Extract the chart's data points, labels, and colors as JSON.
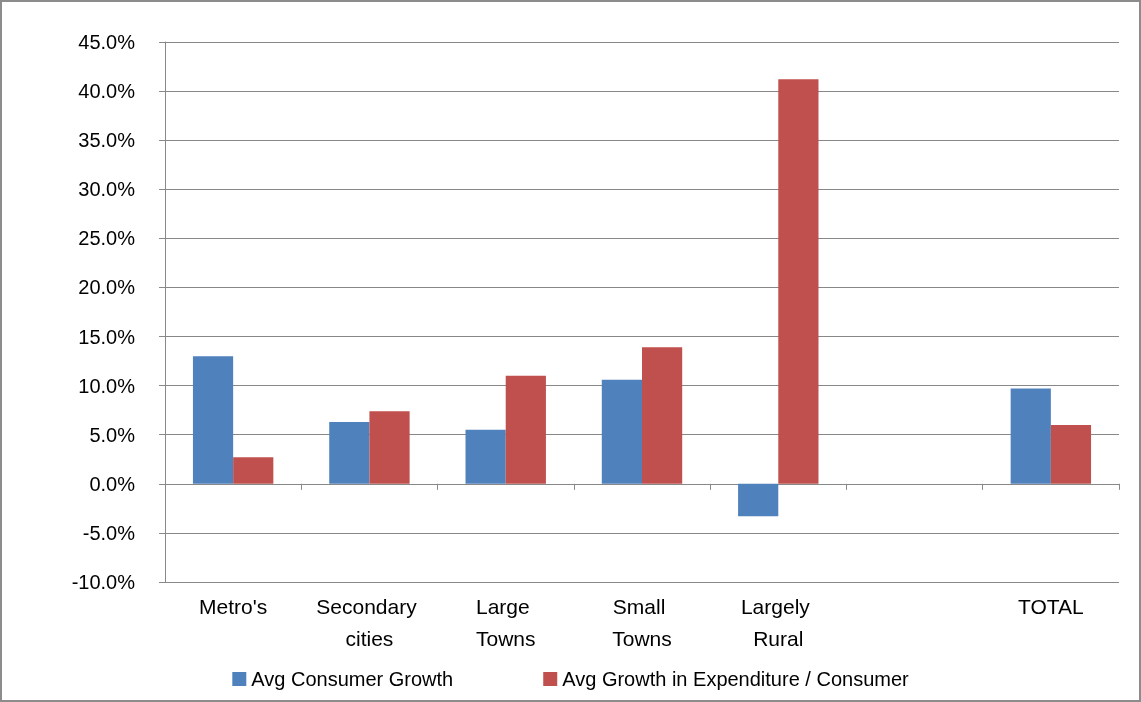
{
  "chart_data": {
    "type": "bar",
    "categories": [
      "Metro's",
      "Secondary cities",
      "Large Towns",
      "Small Towns",
      "Largely Rural",
      null,
      "TOTAL"
    ],
    "series": [
      {
        "name": "Avg Consumer Growth",
        "color": "#4f81bd",
        "values": [
          13.0,
          6.3,
          5.5,
          10.6,
          -3.3,
          null,
          9.7
        ]
      },
      {
        "name": "Avg Growth in Expenditure / Consumer",
        "color": "#c0504d",
        "values": [
          2.7,
          7.4,
          11.0,
          13.9,
          41.2,
          null,
          6.0
        ]
      }
    ],
    "ylim": [
      -10,
      45
    ],
    "yticks": [
      {
        "value": -10,
        "label": "-10.0%"
      },
      {
        "value": -5,
        "label": "-5.0%"
      },
      {
        "value": 0,
        "label": "0.0%"
      },
      {
        "value": 5,
        "label": "5.0%"
      },
      {
        "value": 10,
        "label": "10.0%"
      },
      {
        "value": 15,
        "label": "15.0%"
      },
      {
        "value": 20,
        "label": "20.0%"
      },
      {
        "value": 25,
        "label": "25.0%"
      },
      {
        "value": 30,
        "label": "30.0%"
      },
      {
        "value": 35,
        "label": "35.0%"
      },
      {
        "value": 40,
        "label": "40.0%"
      },
      {
        "value": 45,
        "label": "45.0%"
      }
    ],
    "grid": "y",
    "legend": "bottom"
  }
}
